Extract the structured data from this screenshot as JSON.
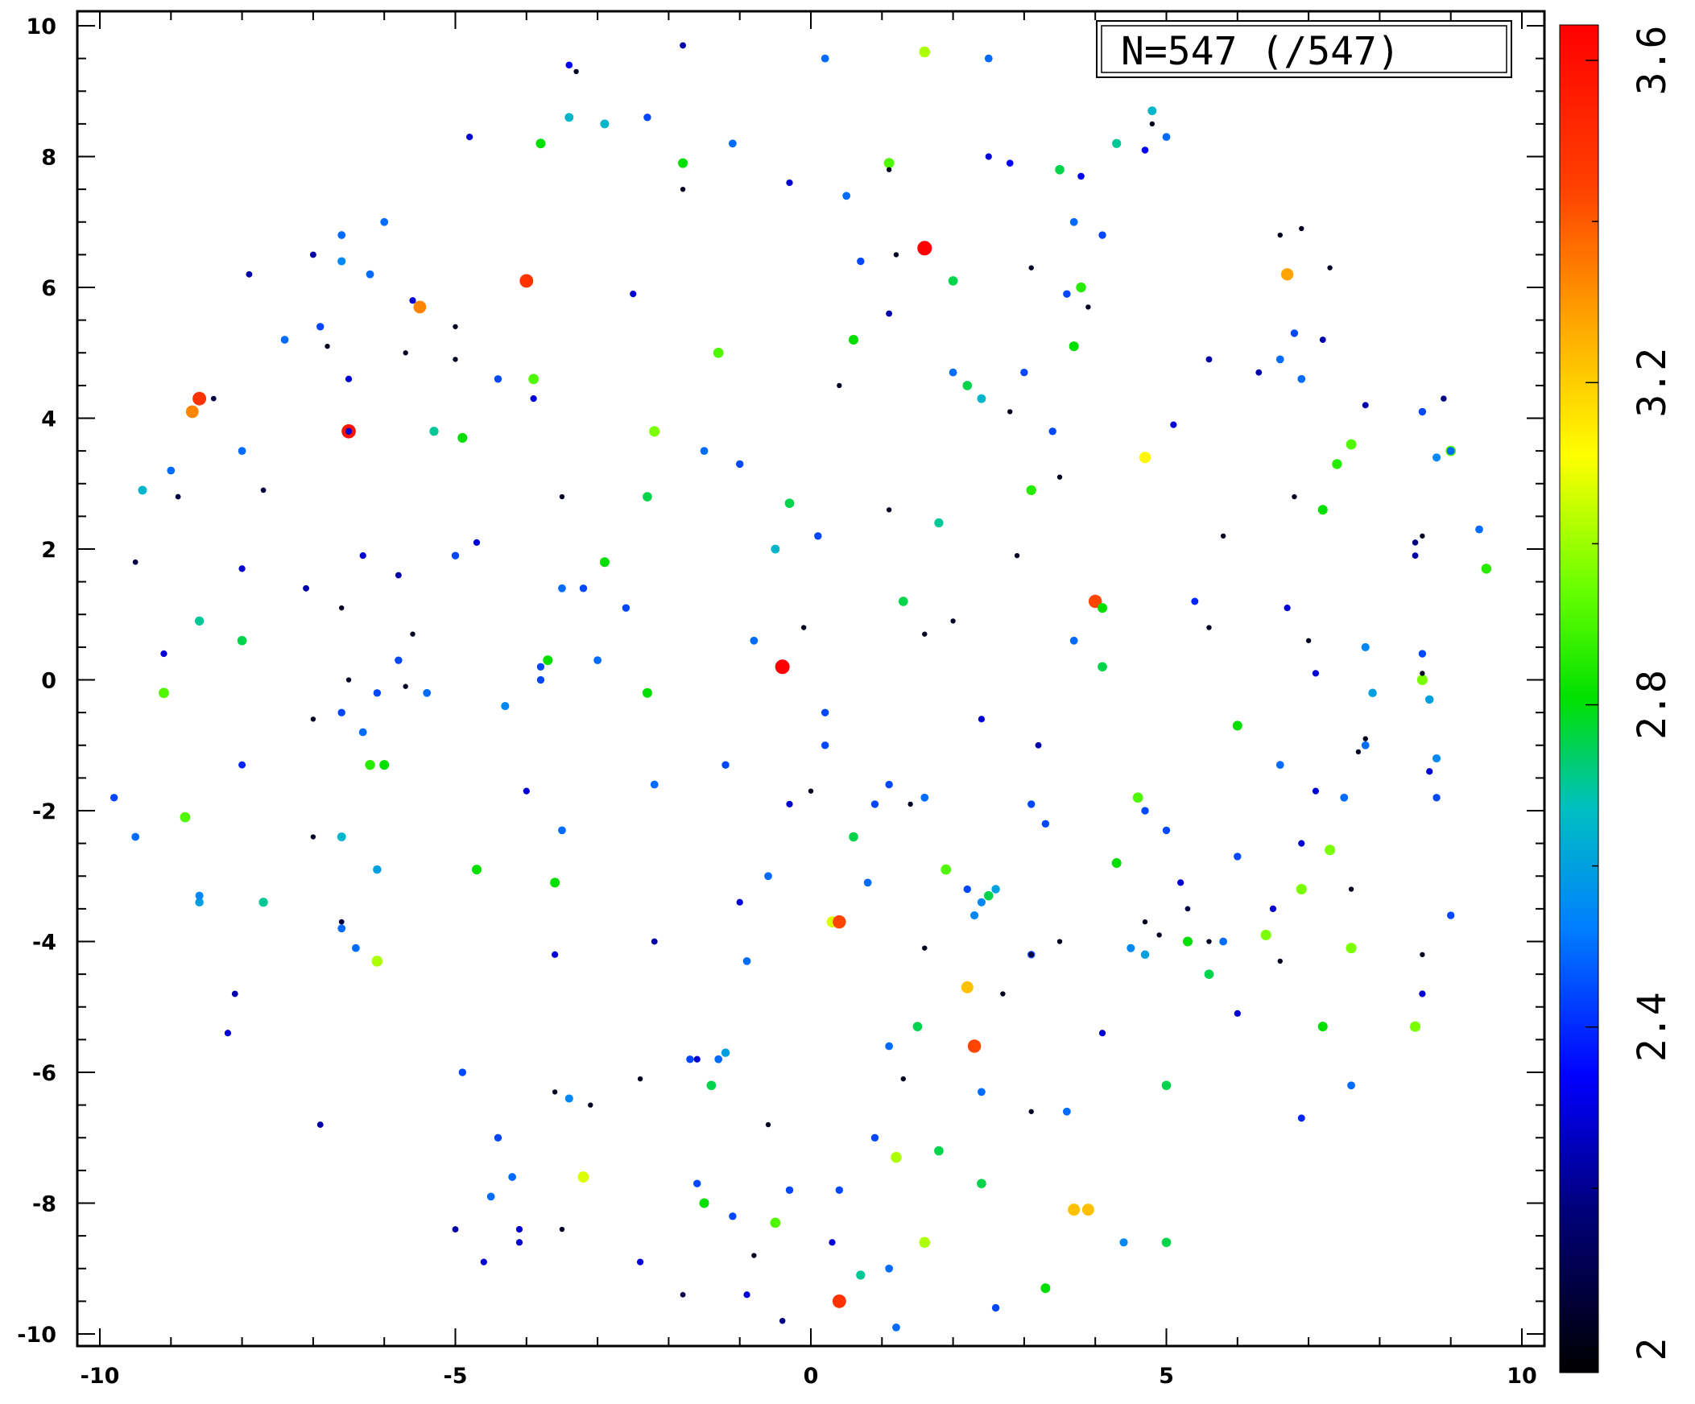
{
  "chart_data": {
    "type": "scatter",
    "title": "",
    "xlabel": "",
    "ylabel": "",
    "xlim": [
      -10,
      10
    ],
    "ylim": [
      -10,
      10
    ],
    "x_ticks": [
      "-10",
      "-5",
      "0",
      "5",
      "10"
    ],
    "y_ticks": [
      "10",
      "8",
      "6",
      "4",
      "2",
      "0",
      "-2",
      "-4",
      "-6",
      "-8",
      "-10"
    ],
    "grid": false,
    "legend": "none",
    "annotation": "N=547 (/547)",
    "colorbar": {
      "range": [
        2,
        3.6
      ],
      "ticks": [
        "2",
        "2.4",
        "2.8",
        "3.2",
        "3.6"
      ],
      "colormap": "black-blue-cyan-green-yellow-orange-red"
    },
    "points": [
      [
        -8.6,
        4.3,
        3.45
      ],
      [
        -8.7,
        4.1,
        3.3
      ],
      [
        -6.5,
        3.8,
        3.55
      ],
      [
        -4.0,
        6.1,
        3.45
      ],
      [
        -5.5,
        5.7,
        3.3
      ],
      [
        1.6,
        6.6,
        3.6
      ],
      [
        -0.4,
        0.2,
        3.6
      ],
      [
        4.0,
        1.2,
        3.4
      ],
      [
        6.7,
        6.2,
        3.25
      ],
      [
        4.7,
        3.4,
        3.1
      ],
      [
        1.6,
        9.6,
        3.0
      ],
      [
        -2.2,
        3.8,
        2.95
      ],
      [
        -6.1,
        -4.3,
        3.0
      ],
      [
        0.3,
        -3.7,
        3.05
      ],
      [
        0.4,
        -3.7,
        3.4
      ],
      [
        2.2,
        -4.7,
        3.2
      ],
      [
        2.3,
        -5.6,
        3.4
      ],
      [
        1.2,
        -7.3,
        3.0
      ],
      [
        1.6,
        -8.6,
        3.0
      ],
      [
        0.4,
        -9.5,
        3.45
      ],
      [
        3.7,
        -8.1,
        3.2
      ],
      [
        3.9,
        -8.1,
        3.2
      ],
      [
        -3.2,
        -7.6,
        3.05
      ],
      [
        -4.1,
        -8.6,
        2.3
      ],
      [
        -3.9,
        4.6,
        2.9
      ],
      [
        -8.0,
        0.6,
        2.75
      ],
      [
        -8.6,
        0.9,
        2.7
      ],
      [
        -9.4,
        2.9,
        2.65
      ],
      [
        -9.1,
        -0.2,
        2.9
      ],
      [
        -8.8,
        -2.1,
        2.9
      ],
      [
        -5.3,
        3.8,
        2.7
      ],
      [
        -4.9,
        3.7,
        2.8
      ],
      [
        -3.7,
        0.3,
        2.8
      ],
      [
        -2.9,
        1.8,
        2.8
      ],
      [
        -2.3,
        2.8,
        2.75
      ],
      [
        -2.3,
        -0.2,
        2.8
      ],
      [
        -1.8,
        7.9,
        2.8
      ],
      [
        -3.8,
        8.2,
        2.8
      ],
      [
        1.1,
        7.9,
        2.9
      ],
      [
        1.8,
        2.4,
        2.7
      ],
      [
        3.1,
        2.9,
        2.85
      ],
      [
        3.5,
        7.8,
        2.75
      ],
      [
        3.8,
        6.0,
        2.85
      ],
      [
        4.3,
        8.2,
        2.7
      ],
      [
        4.8,
        8.7,
        2.65
      ],
      [
        0.6,
        5.2,
        2.8
      ],
      [
        -1.3,
        5.0,
        2.9
      ],
      [
        3.7,
        5.1,
        2.8
      ],
      [
        7.2,
        2.6,
        2.8
      ],
      [
        7.4,
        3.3,
        2.85
      ],
      [
        7.6,
        3.6,
        2.9
      ],
      [
        9.0,
        3.5,
        2.9
      ],
      [
        9.5,
        1.7,
        2.85
      ],
      [
        8.6,
        0.0,
        2.95
      ],
      [
        6.0,
        -0.7,
        2.8
      ],
      [
        4.6,
        -1.8,
        2.9
      ],
      [
        4.3,
        -2.8,
        2.8
      ],
      [
        6.9,
        -3.2,
        2.95
      ],
      [
        7.3,
        -2.6,
        2.95
      ],
      [
        5.3,
        -4.0,
        2.8
      ],
      [
        5.6,
        -4.5,
        2.75
      ],
      [
        6.4,
        -3.9,
        2.95
      ],
      [
        7.6,
        -4.1,
        2.95
      ],
      [
        7.2,
        -5.3,
        2.8
      ],
      [
        8.5,
        -5.3,
        2.95
      ],
      [
        5.0,
        -6.2,
        2.75
      ],
      [
        5.0,
        -8.6,
        2.75
      ],
      [
        3.3,
        -9.3,
        2.8
      ],
      [
        1.8,
        -7.2,
        2.75
      ],
      [
        2.4,
        -7.7,
        2.75
      ],
      [
        1.5,
        -5.3,
        2.75
      ],
      [
        2.5,
        -3.3,
        2.75
      ],
      [
        1.9,
        -2.9,
        2.9
      ],
      [
        0.6,
        -2.4,
        2.75
      ],
      [
        -1.5,
        -8.0,
        2.8
      ],
      [
        -1.4,
        -6.2,
        2.75
      ],
      [
        -4.7,
        -2.9,
        2.8
      ],
      [
        -3.6,
        -3.1,
        2.8
      ],
      [
        -6.2,
        -1.3,
        2.85
      ],
      [
        -6.0,
        -1.3,
        2.8
      ],
      [
        -0.5,
        -8.3,
        2.9
      ],
      [
        0.7,
        -9.1,
        2.7
      ],
      [
        -0.3,
        2.7,
        2.75
      ],
      [
        1.3,
        1.2,
        2.75
      ],
      [
        4.1,
        1.1,
        2.8
      ],
      [
        4.1,
        0.2,
        2.75
      ],
      [
        -7.7,
        -3.4,
        2.7
      ],
      [
        2.4,
        4.3,
        2.65
      ],
      [
        2.2,
        4.5,
        2.75
      ],
      [
        2.0,
        6.1,
        2.75
      ],
      [
        -4.3,
        -0.4,
        2.55
      ],
      [
        -2.9,
        8.5,
        2.65
      ],
      [
        -3.4,
        8.6,
        2.65
      ],
      [
        -6.0,
        7.0,
        2.5
      ],
      [
        -6.6,
        6.8,
        2.5
      ],
      [
        -6.2,
        6.2,
        2.5
      ],
      [
        -6.6,
        6.4,
        2.55
      ],
      [
        -7.4,
        5.2,
        2.5
      ],
      [
        -8.0,
        3.5,
        2.5
      ],
      [
        -9.0,
        3.2,
        2.5
      ],
      [
        -6.9,
        5.4,
        2.45
      ],
      [
        -4.4,
        4.6,
        2.45
      ],
      [
        -3.5,
        1.4,
        2.5
      ],
      [
        -3.2,
        1.4,
        2.45
      ],
      [
        -2.6,
        1.1,
        2.45
      ],
      [
        -5.0,
        1.9,
        2.45
      ],
      [
        -3.0,
        0.3,
        2.5
      ],
      [
        -3.8,
        0.0,
        2.45
      ],
      [
        -3.8,
        0.2,
        2.45
      ],
      [
        -1.5,
        3.5,
        2.5
      ],
      [
        -1.0,
        3.3,
        2.45
      ],
      [
        -1.1,
        8.2,
        2.5
      ],
      [
        -2.3,
        8.6,
        2.45
      ],
      [
        0.5,
        7.4,
        2.5
      ],
      [
        0.2,
        9.5,
        2.5
      ],
      [
        2.5,
        9.5,
        2.5
      ],
      [
        3.7,
        7.0,
        2.5
      ],
      [
        4.1,
        6.8,
        2.45
      ],
      [
        3.6,
        5.9,
        2.45
      ],
      [
        6.6,
        4.9,
        2.5
      ],
      [
        6.8,
        5.3,
        2.45
      ],
      [
        6.9,
        4.6,
        2.5
      ],
      [
        5.0,
        8.3,
        2.5
      ],
      [
        8.6,
        4.1,
        2.45
      ],
      [
        9.0,
        3.5,
        2.5
      ],
      [
        8.8,
        3.4,
        2.55
      ],
      [
        9.4,
        2.3,
        2.5
      ],
      [
        8.6,
        0.4,
        2.45
      ],
      [
        7.8,
        0.5,
        2.55
      ],
      [
        7.9,
        -0.2,
        2.6
      ],
      [
        8.7,
        -0.3,
        2.6
      ],
      [
        8.8,
        -1.2,
        2.55
      ],
      [
        7.8,
        -1.0,
        2.5
      ],
      [
        6.6,
        -1.3,
        2.5
      ],
      [
        7.5,
        -1.8,
        2.5
      ],
      [
        8.8,
        -1.8,
        2.45
      ],
      [
        9.0,
        -3.6,
        2.45
      ],
      [
        6.0,
        -2.7,
        2.45
      ],
      [
        5.0,
        -2.3,
        2.45
      ],
      [
        4.7,
        -2.0,
        2.45
      ],
      [
        4.5,
        -4.1,
        2.55
      ],
      [
        4.7,
        -4.2,
        2.6
      ],
      [
        5.8,
        -4.0,
        2.5
      ],
      [
        3.1,
        -4.2,
        2.45
      ],
      [
        3.3,
        -2.2,
        2.45
      ],
      [
        3.1,
        -1.9,
        2.45
      ],
      [
        2.4,
        -3.4,
        2.55
      ],
      [
        2.2,
        -3.2,
        2.45
      ],
      [
        2.3,
        -3.6,
        2.55
      ],
      [
        2.6,
        -3.2,
        2.6
      ],
      [
        1.6,
        -1.8,
        2.5
      ],
      [
        0.9,
        -1.9,
        2.45
      ],
      [
        1.1,
        -1.6,
        2.45
      ],
      [
        0.8,
        -3.1,
        2.5
      ],
      [
        -0.6,
        -3.0,
        2.5
      ],
      [
        -0.9,
        -4.3,
        2.5
      ],
      [
        0.2,
        -1.0,
        2.45
      ],
      [
        0.2,
        -0.5,
        2.45
      ],
      [
        -0.8,
        0.6,
        2.5
      ],
      [
        0.1,
        2.2,
        2.45
      ],
      [
        -0.5,
        2.0,
        2.65
      ],
      [
        0.7,
        6.4,
        2.45
      ],
      [
        2.0,
        4.7,
        2.5
      ],
      [
        3.0,
        4.7,
        2.45
      ],
      [
        3.4,
        3.8,
        2.45
      ],
      [
        3.7,
        0.6,
        2.5
      ],
      [
        -1.2,
        -1.3,
        2.45
      ],
      [
        -2.2,
        -1.6,
        2.5
      ],
      [
        -3.5,
        -2.3,
        2.5
      ],
      [
        -4.4,
        -7.0,
        2.45
      ],
      [
        -4.2,
        -7.6,
        2.5
      ],
      [
        -4.5,
        -7.9,
        2.5
      ],
      [
        -3.4,
        -6.4,
        2.55
      ],
      [
        -1.7,
        -5.8,
        2.45
      ],
      [
        -1.3,
        -5.8,
        2.5
      ],
      [
        -1.2,
        -5.7,
        2.6
      ],
      [
        -1.6,
        -7.7,
        2.45
      ],
      [
        -1.1,
        -8.2,
        2.45
      ],
      [
        -0.3,
        -7.8,
        2.45
      ],
      [
        0.4,
        -7.8,
        2.45
      ],
      [
        1.1,
        -5.6,
        2.5
      ],
      [
        0.9,
        -7.0,
        2.45
      ],
      [
        1.1,
        -9.0,
        2.5
      ],
      [
        1.2,
        -9.9,
        2.5
      ],
      [
        -4.9,
        -6.0,
        2.45
      ],
      [
        -6.4,
        -4.1,
        2.5
      ],
      [
        -6.6,
        -3.8,
        2.5
      ],
      [
        -6.1,
        -2.9,
        2.6
      ],
      [
        -6.6,
        -2.4,
        2.65
      ],
      [
        -6.3,
        -0.8,
        2.5
      ],
      [
        -6.6,
        -0.5,
        2.45
      ],
      [
        -6.1,
        -0.2,
        2.45
      ],
      [
        -5.8,
        0.3,
        2.45
      ],
      [
        -5.4,
        -0.2,
        2.5
      ],
      [
        -8.0,
        -1.3,
        2.4
      ],
      [
        -9.8,
        -1.8,
        2.45
      ],
      [
        -9.5,
        -2.4,
        2.5
      ],
      [
        -8.6,
        -3.4,
        2.6
      ],
      [
        -8.6,
        -3.3,
        2.55
      ],
      [
        3.6,
        -6.6,
        2.5
      ],
      [
        4.4,
        -8.6,
        2.55
      ],
      [
        2.6,
        -9.6,
        2.45
      ],
      [
        2.4,
        -6.3,
        2.5
      ],
      [
        7.6,
        -6.2,
        2.5
      ],
      [
        6.9,
        -6.7,
        2.4
      ],
      [
        5.1,
        3.9,
        2.3
      ],
      [
        6.7,
        1.1,
        2.3
      ],
      [
        5.4,
        1.2,
        2.4
      ],
      [
        7.8,
        4.2,
        2.25
      ],
      [
        7.2,
        5.2,
        2.25
      ],
      [
        8.5,
        2.1,
        2.2
      ],
      [
        -6.3,
        1.9,
        2.3
      ],
      [
        -6.5,
        3.8,
        2.3
      ],
      [
        -6.5,
        4.6,
        2.3
      ],
      [
        -5.6,
        5.8,
        2.3
      ],
      [
        -2.5,
        5.9,
        2.3
      ],
      [
        -3.4,
        9.4,
        2.35
      ],
      [
        -1.8,
        9.7,
        2.25
      ],
      [
        -0.3,
        7.6,
        2.3
      ],
      [
        1.1,
        5.6,
        2.25
      ],
      [
        2.5,
        8.0,
        2.3
      ],
      [
        2.8,
        7.9,
        2.35
      ],
      [
        3.8,
        7.7,
        2.35
      ],
      [
        4.7,
        8.1,
        2.35
      ],
      [
        5.6,
        4.9,
        2.25
      ],
      [
        6.3,
        4.7,
        2.25
      ],
      [
        8.9,
        4.3,
        2.2
      ],
      [
        8.5,
        1.9,
        2.25
      ],
      [
        7.1,
        0.1,
        2.3
      ],
      [
        8.7,
        -1.4,
        2.3
      ],
      [
        7.1,
        -1.7,
        2.3
      ],
      [
        6.9,
        -2.5,
        2.3
      ],
      [
        6.5,
        -3.5,
        2.3
      ],
      [
        8.6,
        -4.8,
        2.3
      ],
      [
        6.0,
        -5.1,
        2.3
      ],
      [
        5.2,
        -3.1,
        2.3
      ],
      [
        4.1,
        -5.4,
        2.3
      ],
      [
        2.4,
        -0.6,
        2.3
      ],
      [
        3.2,
        -1.0,
        2.25
      ],
      [
        -0.3,
        -1.9,
        2.3
      ],
      [
        -1.0,
        -3.4,
        2.3
      ],
      [
        -2.2,
        -4.0,
        2.25
      ],
      [
        -3.6,
        -4.2,
        2.3
      ],
      [
        -4.0,
        -1.7,
        2.3
      ],
      [
        -1.6,
        -5.8,
        2.3
      ],
      [
        -2.4,
        -8.9,
        2.3
      ],
      [
        -0.9,
        -9.4,
        2.3
      ],
      [
        -0.4,
        -9.8,
        2.2
      ],
      [
        0.3,
        -8.6,
        2.3
      ],
      [
        -4.6,
        -8.9,
        2.3
      ],
      [
        -5.0,
        -8.4,
        2.25
      ],
      [
        -4.1,
        -8.4,
        2.3
      ],
      [
        -6.9,
        -6.8,
        2.25
      ],
      [
        -8.2,
        -5.4,
        2.3
      ],
      [
        -8.1,
        -4.8,
        2.25
      ],
      [
        -9.1,
        0.4,
        2.3
      ],
      [
        -8.0,
        1.7,
        2.3
      ],
      [
        -7.1,
        1.4,
        2.25
      ],
      [
        -5.8,
        1.6,
        2.25
      ],
      [
        -4.7,
        2.1,
        2.3
      ],
      [
        -3.9,
        4.3,
        2.3
      ],
      [
        -4.8,
        8.3,
        2.3
      ],
      [
        -7.9,
        6.2,
        2.25
      ],
      [
        -7.0,
        6.5,
        2.25
      ],
      [
        -8.4,
        4.3,
        2.1
      ],
      [
        -9.5,
        1.8,
        2.1
      ],
      [
        -8.9,
        2.8,
        2.1
      ],
      [
        -5.0,
        5.4,
        2.05
      ],
      [
        -5.0,
        4.9,
        2.05
      ],
      [
        -5.7,
        5.0,
        2.05
      ],
      [
        -6.8,
        5.1,
        2.05
      ],
      [
        -7.7,
        2.9,
        2.1
      ],
      [
        -6.6,
        1.1,
        2.05
      ],
      [
        -6.5,
        0.0,
        2.05
      ],
      [
        -5.6,
        0.7,
        2.05
      ],
      [
        -5.7,
        -0.1,
        2.05
      ],
      [
        -7.0,
        -0.6,
        2.05
      ],
      [
        -7.0,
        -2.4,
        2.05
      ],
      [
        -6.6,
        -3.7,
        2.1
      ],
      [
        -3.6,
        -6.3,
        2.05
      ],
      [
        -3.1,
        -6.5,
        2.05
      ],
      [
        -2.4,
        -6.1,
        2.05
      ],
      [
        -3.5,
        -8.4,
        2.05
      ],
      [
        -0.8,
        -8.8,
        2.05
      ],
      [
        1.3,
        -6.1,
        2.05
      ],
      [
        3.1,
        -6.6,
        2.05
      ],
      [
        3.1,
        -4.2,
        2.1
      ],
      [
        1.6,
        -4.1,
        2.05
      ],
      [
        2.7,
        -4.8,
        2.05
      ],
      [
        4.7,
        -3.7,
        2.05
      ],
      [
        4.9,
        -3.9,
        2.05
      ],
      [
        5.3,
        -3.5,
        2.1
      ],
      [
        5.6,
        -4.0,
        2.05
      ],
      [
        6.6,
        -4.3,
        2.05
      ],
      [
        7.6,
        -3.2,
        2.05
      ],
      [
        8.6,
        -4.2,
        2.05
      ],
      [
        7.8,
        -0.9,
        2.05
      ],
      [
        7.7,
        -1.1,
        2.05
      ],
      [
        7.0,
        0.6,
        2.05
      ],
      [
        8.6,
        2.2,
        2.05
      ],
      [
        8.6,
        0.1,
        2.05
      ],
      [
        7.3,
        6.3,
        2.05
      ],
      [
        6.9,
        6.9,
        2.05
      ],
      [
        6.6,
        6.8,
        2.05
      ],
      [
        6.8,
        2.8,
        2.05
      ],
      [
        5.8,
        2.2,
        2.05
      ],
      [
        5.6,
        0.8,
        2.05
      ],
      [
        4.8,
        8.5,
        2.05
      ],
      [
        3.9,
        5.7,
        2.05
      ],
      [
        3.1,
        6.3,
        2.05
      ],
      [
        2.8,
        4.1,
        2.05
      ],
      [
        2.9,
        1.9,
        2.05
      ],
      [
        3.5,
        3.1,
        2.05
      ],
      [
        2.0,
        0.9,
        2.05
      ],
      [
        1.6,
        0.7,
        2.05
      ],
      [
        1.1,
        2.6,
        2.05
      ],
      [
        0.4,
        4.5,
        2.05
      ],
      [
        1.2,
        6.5,
        2.05
      ],
      [
        1.1,
        7.8,
        2.05
      ],
      [
        -1.8,
        7.5,
        2.05
      ],
      [
        -3.3,
        9.3,
        2.05
      ],
      [
        -3.5,
        2.8,
        2.05
      ],
      [
        -0.1,
        0.8,
        2.05
      ],
      [
        0.0,
        -1.7,
        2.05
      ],
      [
        -0.6,
        -6.8,
        2.05
      ],
      [
        -1.8,
        -9.4,
        2.1
      ],
      [
        1.4,
        -1.9,
        2.05
      ],
      [
        3.5,
        -4.0,
        2.05
      ]
    ]
  }
}
